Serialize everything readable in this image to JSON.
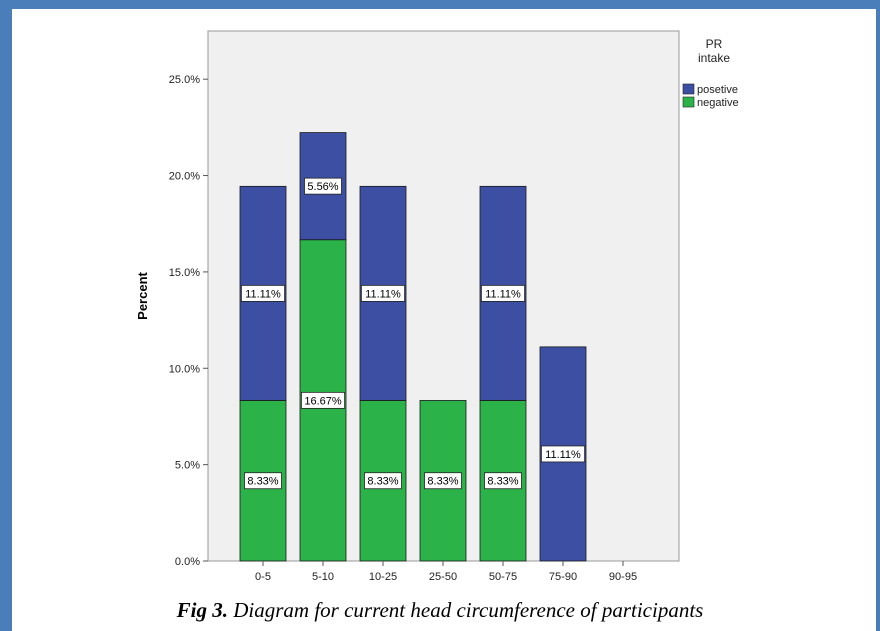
{
  "caption": {
    "label": "Fig 3.",
    "text": "Diagram for current head circumference of participants"
  },
  "colors": {
    "border": "#4a7ebb",
    "plot_bg": "#f0f0f0",
    "posetive": "#3c4fa3",
    "negative": "#2bb34a"
  },
  "chart_data": {
    "type": "bar",
    "stacked": true,
    "title": "",
    "xlabel": "",
    "ylabel": "Percent",
    "ylim": [
      0,
      27.5
    ],
    "yticks": [
      "0.0%",
      "5.0%",
      "10.0%",
      "15.0%",
      "20.0%",
      "25.0%"
    ],
    "categories": [
      "0-5",
      "5-10",
      "10-25",
      "25-50",
      "50-75",
      "75-90",
      "90-95"
    ],
    "legend": {
      "title": "PR intake",
      "placement": "top-right"
    },
    "series": [
      {
        "name": "negative",
        "values": [
          8.33,
          16.67,
          8.33,
          8.33,
          8.33,
          0,
          0
        ],
        "labels": [
          "8.33%",
          "16.67%",
          "8.33%",
          "8.33%",
          "8.33%",
          "",
          ""
        ]
      },
      {
        "name": "posetive",
        "values": [
          11.11,
          5.56,
          11.11,
          0,
          11.11,
          11.11,
          0
        ],
        "labels": [
          "11.11%",
          "5.56%",
          "11.11%",
          "",
          "11.11%",
          "11.11%",
          ""
        ]
      }
    ]
  }
}
